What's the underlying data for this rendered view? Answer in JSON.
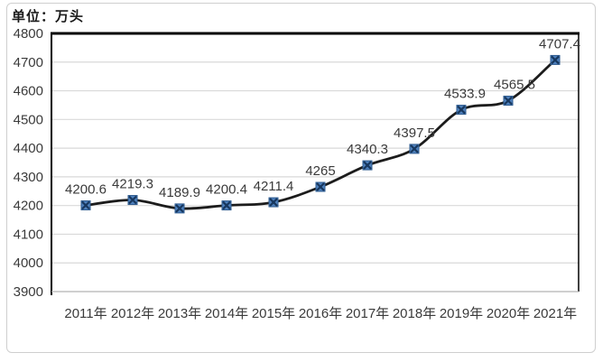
{
  "chart_data": {
    "type": "line",
    "unit_label": "单位：万头",
    "categories": [
      "2011年",
      "2012年",
      "2013年",
      "2014年",
      "2015年",
      "2016年",
      "2017年",
      "2018年",
      "2019年",
      "2020年",
      "2021年"
    ],
    "values": [
      4200.6,
      4219.3,
      4189.9,
      4200.4,
      4211.4,
      4265,
      4340.3,
      4397.5,
      4533.9,
      4565.5,
      4707.4
    ],
    "point_labels": [
      "4200.6",
      "4219.3",
      "4189.9",
      "4200.4",
      "4211.4",
      "4265",
      "4340.3",
      "4397.5",
      "4533.9",
      "4565.5",
      "4707.4"
    ],
    "ylim": [
      3900,
      4800
    ],
    "ytick_step": 100,
    "ytick_labels": [
      "3900",
      "4000",
      "4100",
      "4200",
      "4300",
      "4400",
      "4500",
      "4600",
      "4700",
      "4800"
    ],
    "grid": true,
    "legend": "none",
    "marker_style": "x-square",
    "colors": {
      "line": "#1c1c1c",
      "marker_fill": "#4f81bd",
      "marker_cross": "#17375e",
      "marker_edge": "#2e5b8f",
      "gridline": "#d9d9d9",
      "baseline": "#b3b3b3",
      "plot_border": "#000000",
      "frame_border": "#cfcfcf",
      "axis_text": "#3a3a3a",
      "label_text": "#3a3a3a"
    }
  }
}
